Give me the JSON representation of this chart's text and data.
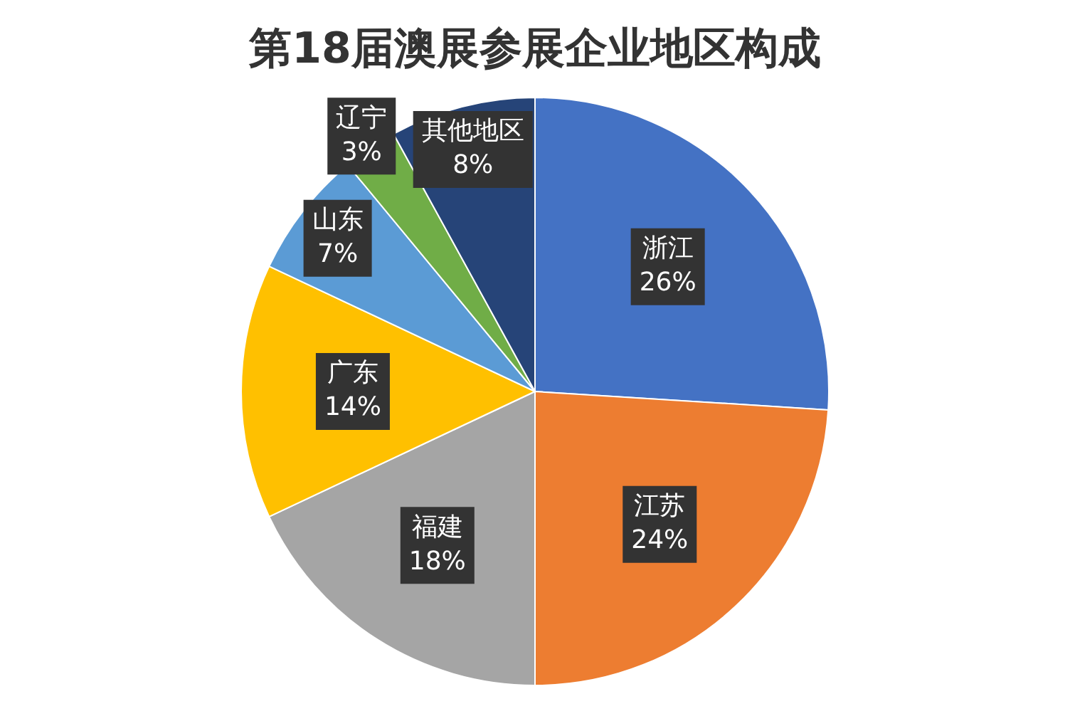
{
  "chart_data": {
    "type": "pie",
    "title": "第18届澳展参展企业地区构成",
    "categories": [
      "浙江",
      "江苏",
      "福建",
      "广东",
      "山东",
      "辽宁",
      "其他地区"
    ],
    "values": [
      26,
      24,
      18,
      14,
      7,
      3,
      8
    ],
    "value_labels": [
      "26%",
      "24%",
      "18%",
      "14%",
      "7%",
      "3%",
      "8%"
    ],
    "colors": [
      "#4472c4",
      "#ed7d31",
      "#a5a5a5",
      "#ffc000",
      "#5b9bd5",
      "#70ad47",
      "#264478"
    ],
    "legend": false
  }
}
